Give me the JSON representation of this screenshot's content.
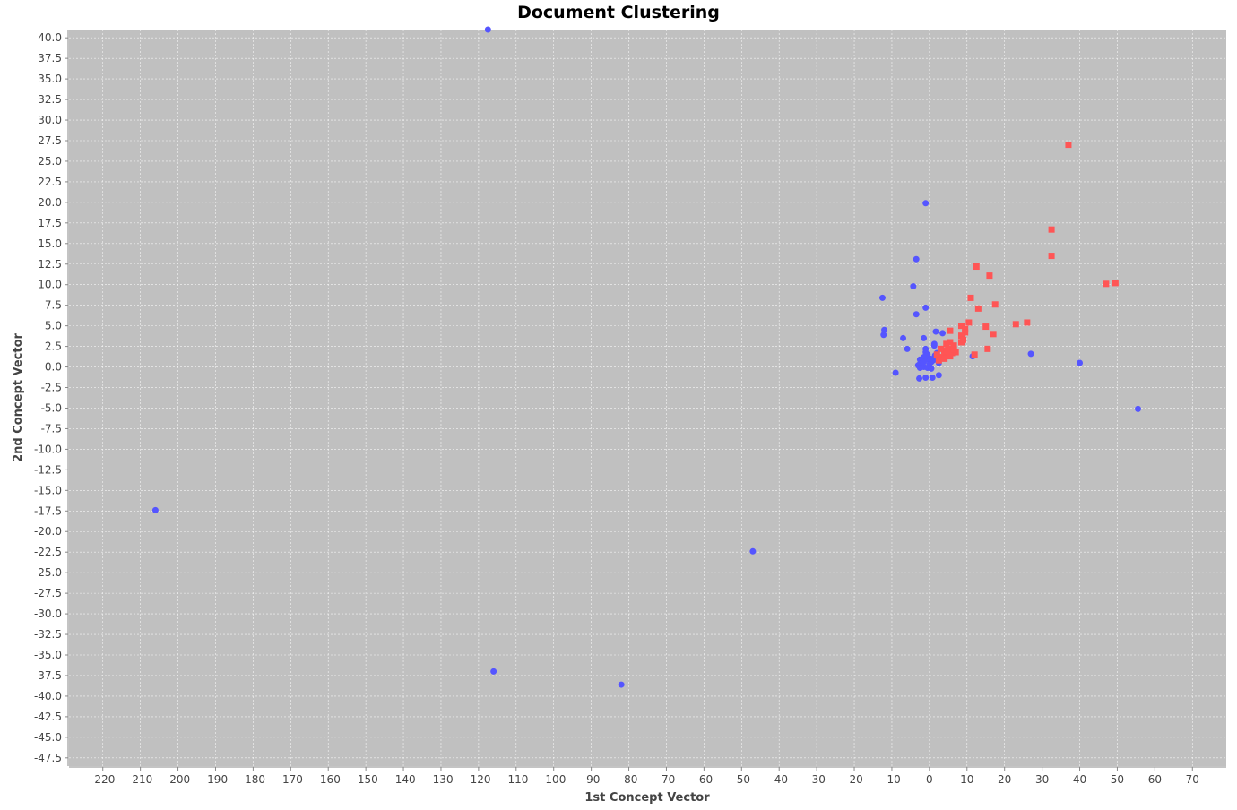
{
  "chart_data": {
    "type": "scatter",
    "title": "Document Clustering",
    "xlabel": "1st Concept Vector",
    "ylabel": "2nd Concept Vector",
    "xlim": [
      -229,
      79
    ],
    "ylim": [
      -48.5,
      41
    ],
    "x_ticks": [
      -220,
      -210,
      -200,
      -190,
      -180,
      -170,
      -160,
      -150,
      -140,
      -130,
      -120,
      -110,
      -100,
      -90,
      -80,
      -70,
      -60,
      -50,
      -40,
      -30,
      -20,
      -10,
      0,
      10,
      20,
      30,
      40,
      50,
      60,
      70
    ],
    "y_ticks": [
      40.0,
      37.5,
      35.0,
      32.5,
      30.0,
      27.5,
      25.0,
      22.5,
      20.0,
      17.5,
      15.0,
      12.5,
      10.0,
      7.5,
      5.0,
      2.5,
      0.0,
      -2.5,
      -5.0,
      -7.5,
      -10.0,
      -12.5,
      -15.0,
      -17.5,
      -20.0,
      -22.5,
      -25.0,
      -27.5,
      -30.0,
      -32.5,
      -35.0,
      -37.5,
      -40.0,
      -42.5,
      -45.0,
      -47.5
    ],
    "grid": true,
    "legend": "none",
    "plot_background": "#c0c0c0",
    "series": [
      {
        "marker": "circle",
        "color": "#5555ff",
        "points": [
          [
            -117.5,
            41.0
          ],
          [
            -206,
            -17.4
          ],
          [
            -116,
            -37.0
          ],
          [
            -82,
            -38.6
          ],
          [
            -47,
            -22.4
          ],
          [
            55.5,
            -5.1
          ],
          [
            40,
            0.5
          ],
          [
            27,
            1.6
          ],
          [
            11.5,
            1.3
          ],
          [
            -1,
            19.9
          ],
          [
            -3.5,
            13.1
          ],
          [
            -4.3,
            9.8
          ],
          [
            -12.5,
            8.4
          ],
          [
            -3.5,
            6.4
          ],
          [
            -1,
            7.2
          ],
          [
            -12,
            4.5
          ],
          [
            -12.2,
            3.9
          ],
          [
            -7,
            3.5
          ],
          [
            -5.9,
            2.2
          ],
          [
            -9,
            -0.7
          ],
          [
            -1.5,
            3.5
          ],
          [
            1.7,
            4.3
          ],
          [
            3.5,
            4.1
          ],
          [
            1.3,
            2.8
          ],
          [
            1.3,
            2.6
          ],
          [
            -1,
            2.2
          ],
          [
            -1,
            1.8
          ],
          [
            -0.5,
            1.5
          ],
          [
            -1.5,
            1.2
          ],
          [
            -0.5,
            0.9
          ],
          [
            0.5,
            0.6
          ],
          [
            1.5,
            1.4
          ],
          [
            2.5,
            1.0
          ],
          [
            -2.5,
            0.9
          ],
          [
            -2.5,
            0.4
          ],
          [
            -3.0,
            0.2
          ],
          [
            -1.5,
            0.0
          ],
          [
            -2.5,
            -0.1
          ],
          [
            -0.5,
            -0.1
          ],
          [
            0.5,
            -0.2
          ],
          [
            0,
            0.3
          ],
          [
            -1.5,
            0.6
          ],
          [
            1.0,
            0.8
          ],
          [
            2.5,
            0.5
          ],
          [
            2.5,
            -1.0
          ],
          [
            0.8,
            -1.3
          ],
          [
            -1.0,
            -1.3
          ],
          [
            -2.7,
            -1.4
          ],
          [
            2.0,
            1.7
          ],
          [
            0.3,
            1.0
          ]
        ]
      },
      {
        "marker": "square",
        "color": "#ff5555",
        "points": [
          [
            37,
            27.0
          ],
          [
            32.5,
            16.7
          ],
          [
            32.5,
            13.5
          ],
          [
            47,
            10.1
          ],
          [
            49.5,
            10.2
          ],
          [
            12.5,
            12.2
          ],
          [
            16,
            11.1
          ],
          [
            11,
            8.4
          ],
          [
            13,
            7.1
          ],
          [
            17.5,
            7.6
          ],
          [
            23,
            5.2
          ],
          [
            26,
            5.4
          ],
          [
            10.5,
            5.4
          ],
          [
            8.5,
            5.0
          ],
          [
            5.5,
            4.4
          ],
          [
            9.5,
            4.6
          ],
          [
            15,
            4.9
          ],
          [
            17,
            4.0
          ],
          [
            9.5,
            4.2
          ],
          [
            8.5,
            3.8
          ],
          [
            8.5,
            3.0
          ],
          [
            9.0,
            3.3
          ],
          [
            5.5,
            3.0
          ],
          [
            6.5,
            2.6
          ],
          [
            4.5,
            2.8
          ],
          [
            5.0,
            2.2
          ],
          [
            4.0,
            2.0
          ],
          [
            7.0,
            1.8
          ],
          [
            6.0,
            1.7
          ],
          [
            15.5,
            2.2
          ],
          [
            12,
            1.5
          ],
          [
            4.0,
            1.5
          ],
          [
            3.5,
            1.2
          ],
          [
            4.0,
            1.0
          ],
          [
            3.0,
            2.2
          ],
          [
            2.0,
            1.5
          ],
          [
            2.5,
            0.8
          ],
          [
            4.5,
            1.9
          ],
          [
            5.5,
            1.3
          ],
          [
            6.5,
            2.1
          ]
        ]
      }
    ]
  }
}
